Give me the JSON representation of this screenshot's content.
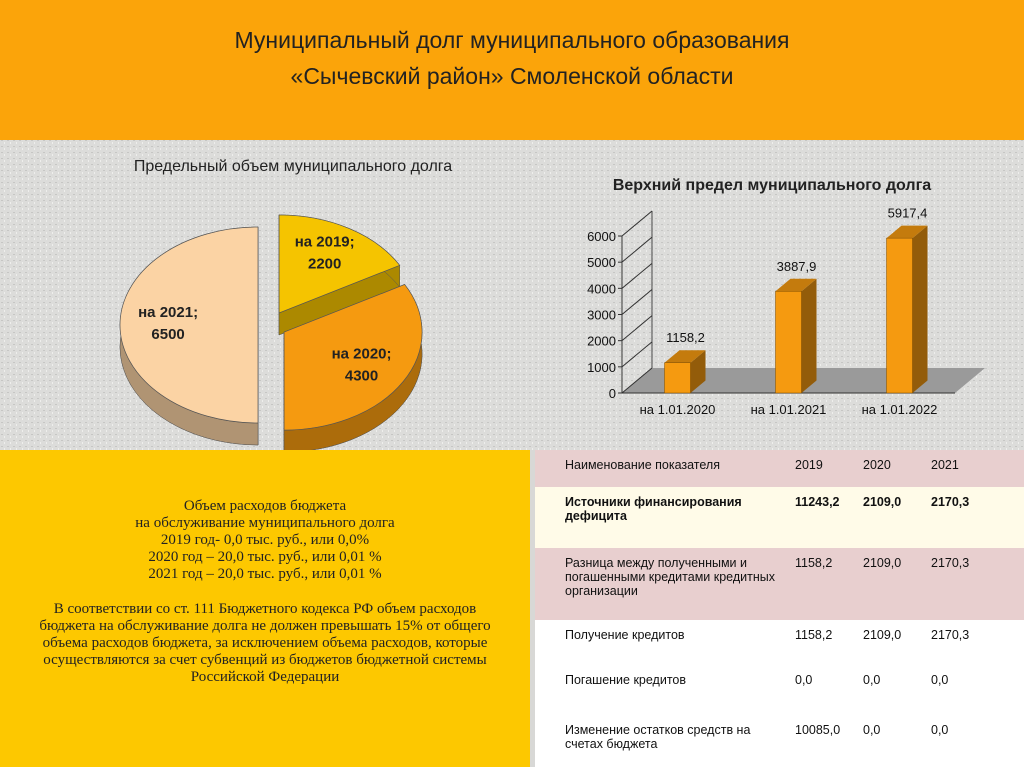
{
  "header": {
    "title": [
      "Муниципальный долг муниципального образования",
      "«Сычевский район» Смоленской области"
    ]
  },
  "chart_data": [
    {
      "type": "pie",
      "title": "Предельный объем муниципального долга",
      "categories": [
        "на 2019;",
        "на 2020;",
        "на 2021;"
      ],
      "values": [
        2200,
        4300,
        6500
      ],
      "colors": [
        "#f5c400",
        "#f59a10",
        "#fbd3a4"
      ]
    },
    {
      "type": "bar",
      "title": "Верхний предел муниципального долга",
      "categories": [
        "на 1.01.2020",
        "на 1.01.2021",
        "на 1.01.2022"
      ],
      "values": [
        1158.2,
        3887.9,
        5917.4
      ],
      "value_labels": [
        "1158,2",
        "3887,9",
        "5917,4"
      ],
      "color": "#f59a10",
      "ylim": [
        0,
        6000
      ],
      "yticks": [
        0,
        1000,
        2000,
        3000,
        4000,
        5000,
        6000
      ]
    }
  ],
  "budget_text": {
    "lines": [
      "Объем расходов бюджета",
      "на обслуживание муниципального долга",
      "2019 год- 0,0 тыс. руб., или 0,0%",
      "2020 год – 20,0 тыс. руб., или 0,01 %",
      "2021 год – 20,0 тыс. руб., или 0,01 %"
    ],
    "paragraph": "В соответствии со ст. 111 Бюджетного кодекса РФ объем расходов бюджета на обслуживание долга не должен превышать 15% от общего объема расходов бюджета, за исключением объема расходов, которые осуществляются за счет субвенций из бюджетов бюджетной системы Российской Федерации"
  },
  "table": {
    "header": [
      "Наименование показателя",
      "2019",
      "2020",
      "2021"
    ],
    "rows": [
      [
        "Источники финансирования дефицита",
        "11243,2",
        "2109,0",
        "2170,3"
      ],
      [
        "Разница между полученными и погашенными кредитами кредитных организации",
        "1158,2",
        "2109,0",
        "2170,3"
      ],
      [
        "Получение кредитов",
        "1158,2",
        "2109,0",
        "2170,3"
      ],
      [
        "Погашение кредитов",
        "0,0",
        "0,0",
        "0,0"
      ],
      [
        "Изменение остатков средств на счетах бюджета",
        "10085,0",
        "0,0",
        "0,0"
      ]
    ]
  }
}
